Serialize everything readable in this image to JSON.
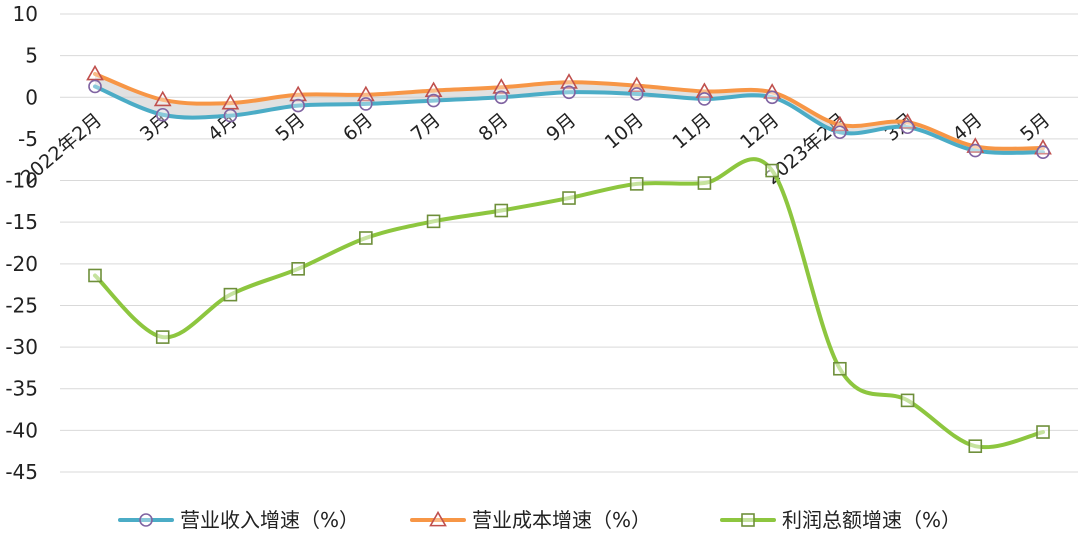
{
  "chart_data": {
    "type": "line",
    "title": "",
    "xlabel": "",
    "ylabel": "",
    "ylim": [
      -45,
      10
    ],
    "yticks": [
      10,
      5,
      0,
      -5,
      -10,
      -15,
      -20,
      -25,
      -30,
      -35,
      -40,
      -45
    ],
    "grid": true,
    "legend_position": "bottom",
    "categories": [
      "2022年2月",
      "3月",
      "4月",
      "5月",
      "6月",
      "7月",
      "8月",
      "9月",
      "10月",
      "11月",
      "12月",
      "2023年2月",
      "3月",
      "4月",
      "5月"
    ],
    "series": [
      {
        "name": "营业收入增速（%）",
        "color": "#4BACC6",
        "marker": "circle",
        "values": [
          1.3,
          -2.1,
          -2.2,
          -1.0,
          -0.8,
          -0.4,
          0.0,
          0.6,
          0.4,
          -0.2,
          0.0,
          -4.2,
          -3.6,
          -6.4,
          -6.6
        ]
      },
      {
        "name": "营业成本增速（%）",
        "color": "#F79646",
        "marker": "triangle",
        "values": [
          2.8,
          -0.3,
          -0.7,
          0.3,
          0.3,
          0.8,
          1.2,
          1.8,
          1.4,
          0.7,
          0.6,
          -3.3,
          -3.0,
          -5.9,
          -6.1
        ]
      },
      {
        "name": "利润总额增速（%）",
        "color": "#8DC63F",
        "marker": "square",
        "values": [
          -21.4,
          -28.8,
          -23.7,
          -20.6,
          -16.9,
          -14.9,
          -13.6,
          -12.1,
          -10.4,
          -10.3,
          -8.8,
          -32.6,
          -36.4,
          -41.9,
          -40.2
        ]
      }
    ]
  }
}
